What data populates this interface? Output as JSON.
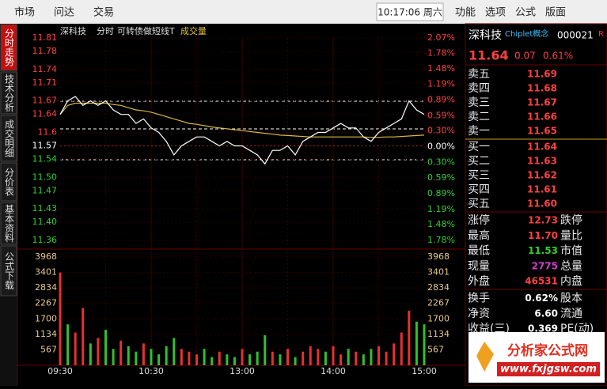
{
  "toolbar": {
    "left": [
      "市场",
      "问达",
      "交易"
    ],
    "time": "10:17:06 周六",
    "right": [
      "功能",
      "选项",
      "公式",
      "版面"
    ]
  },
  "side_tabs": [
    "分时走势",
    "技术分析",
    "成交明细",
    "分价表",
    "基本资料",
    "公式下载"
  ],
  "chart_data": [
    {
      "type": "line",
      "header": [
        "深科技",
        "分时",
        "可转债做短线T",
        "成交量"
      ],
      "categories": [
        "09:30",
        null,
        null,
        null,
        null,
        null,
        null,
        null,
        null,
        null,
        null,
        null,
        "10:30",
        null,
        null,
        null,
        null,
        null,
        null,
        null,
        null,
        null,
        null,
        null,
        "13:00",
        null,
        null,
        null,
        null,
        null,
        null,
        null,
        null,
        null,
        null,
        null,
        "14:00",
        null,
        null,
        null,
        null,
        null,
        null,
        null,
        null,
        null,
        null,
        null,
        "15:00"
      ],
      "series": [
        {
          "color": "#ffffff",
          "values": [
            11.64,
            11.67,
            11.68,
            11.66,
            11.67,
            11.66,
            11.67,
            11.65,
            11.64,
            11.64,
            11.62,
            11.63,
            11.61,
            11.6,
            11.58,
            11.55,
            11.57,
            11.58,
            11.59,
            11.59,
            11.58,
            11.57,
            11.58,
            11.57,
            11.57,
            11.56,
            11.55,
            11.53,
            11.56,
            11.56,
            11.57,
            11.55,
            11.58,
            11.59,
            11.6,
            11.6,
            11.61,
            11.62,
            11.61,
            11.61,
            11.59,
            11.58,
            11.6,
            11.61,
            11.62,
            11.63,
            11.67,
            11.65,
            11.64
          ]
        },
        {
          "color": "#d8b840",
          "values": [
            11.64,
            11.66,
            11.665,
            11.665,
            11.665,
            11.665,
            11.665,
            11.662,
            11.66,
            11.655,
            11.65,
            11.648,
            11.645,
            11.64,
            11.635,
            11.63,
            11.625,
            11.62,
            11.618,
            11.615,
            11.612,
            11.61,
            11.608,
            11.606,
            11.604,
            11.602,
            11.6,
            11.598,
            11.596,
            11.594,
            11.593,
            11.592,
            11.591,
            11.59,
            11.59,
            11.59,
            11.59,
            11.59,
            11.59,
            11.59,
            11.59,
            11.589,
            11.589,
            11.59,
            11.59,
            11.591,
            11.592,
            11.593,
            11.594
          ]
        }
      ],
      "ylim": [
        11.36,
        11.81
      ],
      "yticks": [
        11.81,
        11.78,
        11.74,
        11.71,
        11.67,
        11.64,
        11.6,
        {
          "value": 11.57,
          "label": "11.57"
        },
        11.54,
        {
          "value": 11.5,
          "label": "11.50"
        },
        11.47,
        11.43,
        {
          "value": 11.4,
          "label": "11.40"
        },
        11.36
      ],
      "y2lim": [
        -1.78,
        2.07
      ],
      "y2ticks": [
        {
          "value": 2.07,
          "label": "2.07%"
        },
        {
          "value": 1.78,
          "label": "1.78%"
        },
        {
          "value": 1.48,
          "label": "1.48%"
        },
        {
          "value": 1.19,
          "label": "1.19%"
        },
        {
          "value": 0.89,
          "label": "0.89%"
        },
        {
          "value": 0.59,
          "label": "0.59%"
        },
        {
          "value": 0.3,
          "label": "0.30%"
        },
        {
          "value": 0,
          "label": "0.00%"
        },
        {
          "value": -0.3,
          "label": "0.30%"
        },
        {
          "value": -0.59,
          "label": "0.59%"
        },
        {
          "value": -0.89,
          "label": "0.89%"
        },
        {
          "value": -1.19,
          "label": "1.19%"
        },
        {
          "value": -1.48,
          "label": "1.48%"
        },
        {
          "value": -1.78,
          "label": "1.78%"
        }
      ]
    },
    {
      "type": "bar",
      "values": [
        3400,
        1500,
        1200,
        2100,
        800,
        1000,
        1300,
        600,
        900,
        700,
        500,
        800,
        600,
        400,
        700,
        1000,
        600,
        500,
        400,
        600,
        300,
        500,
        400,
        300,
        600,
        400,
        500,
        1100,
        500,
        400,
        600,
        300,
        500,
        700,
        600,
        500,
        700,
        400,
        600,
        500,
        400,
        600,
        700,
        500,
        800,
        1200,
        2000,
        1600,
        1500
      ],
      "colors": [
        "#e83030",
        "#30c030",
        "#e83030",
        "#e83030",
        "#30c030",
        "#e83030",
        "#30c030",
        "#30c030",
        "#e83030",
        "#30c030",
        "#30c030",
        "#e83030",
        "#30c030",
        "#30c030",
        "#30c030",
        "#30c030",
        "#e83030",
        "#e83030",
        "#e83030",
        "#30c030",
        "#30c030",
        "#e83030",
        "#30c030",
        "#30c030",
        "#e83030",
        "#30c030",
        "#30c030",
        "#30c030",
        "#e83030",
        "#30c030",
        "#e83030",
        "#30c030",
        "#e83030",
        "#e83030",
        "#e83030",
        "#30c030",
        "#e83030",
        "#e83030",
        "#30c030",
        "#e83030",
        "#30c030",
        "#30c030",
        "#e83030",
        "#e83030",
        "#e83030",
        "#e83030",
        "#e83030",
        "#30c030",
        "#30c030"
      ],
      "ylim": [
        0,
        3968
      ],
      "yticks": [
        567,
        1134,
        1700,
        2267,
        2834,
        3401,
        3968
      ]
    }
  ],
  "quote": {
    "name": "深科技",
    "concept": "Chiplet概念",
    "code": "000021",
    "flag": "R",
    "price": "11.64",
    "change": "0.07",
    "pct": "0.61%"
  },
  "order_book": [
    [
      "卖五",
      "11.69"
    ],
    [
      "卖四",
      "11.68"
    ],
    [
      "卖三",
      "11.67"
    ],
    [
      "卖二",
      "11.66"
    ],
    [
      "卖一",
      "11.65"
    ],
    [
      "买一",
      "11.64"
    ],
    [
      "买二",
      "11.63"
    ],
    [
      "买三",
      "11.62"
    ],
    [
      "买四",
      "11.61"
    ],
    [
      "买五",
      "11.60"
    ]
  ],
  "stats": [
    {
      "label": "涨停",
      "value": "12.73",
      "next": "跌停",
      "color": "#ff4040"
    },
    {
      "label": "最高",
      "value": "11.70",
      "next": "量比",
      "color": "#ff4040"
    },
    {
      "label": "最低",
      "value": "11.53",
      "next": "市值",
      "color": "#30d030"
    },
    {
      "label": "现量",
      "value": "2775",
      "next": "总量",
      "color": "#d040d0"
    },
    {
      "label": "外盘",
      "value": "46531",
      "next": "内盘",
      "color": "#ff4040"
    },
    {
      "label": "换手",
      "value": "0.62%",
      "next": "股本",
      "color": "#ffffff"
    },
    {
      "label": "净资",
      "value": "6.60",
      "next": "流通",
      "color": "#ffffff"
    },
    {
      "label": "收益(三)",
      "value": "0.369",
      "next": "PE(动)",
      "color": "#ffffff"
    }
  ],
  "logo": {
    "title": "分析家公式网",
    "url": "www.fxjgsw.com"
  }
}
